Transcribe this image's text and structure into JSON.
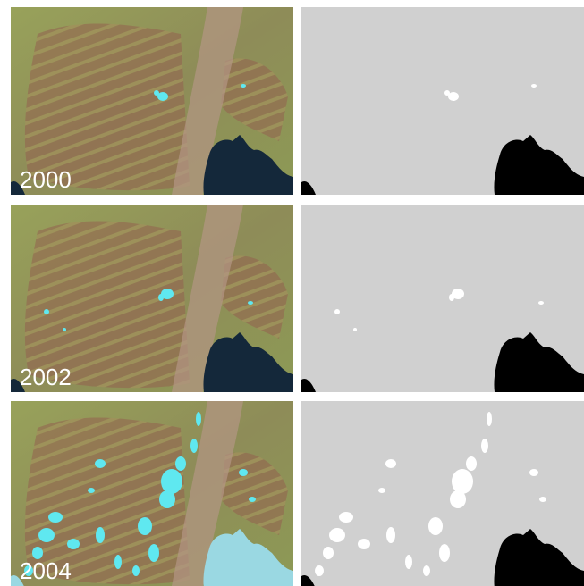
{
  "panels": [
    {
      "year": "2000"
    },
    {
      "year": "2002"
    },
    {
      "year": "2004"
    }
  ]
}
